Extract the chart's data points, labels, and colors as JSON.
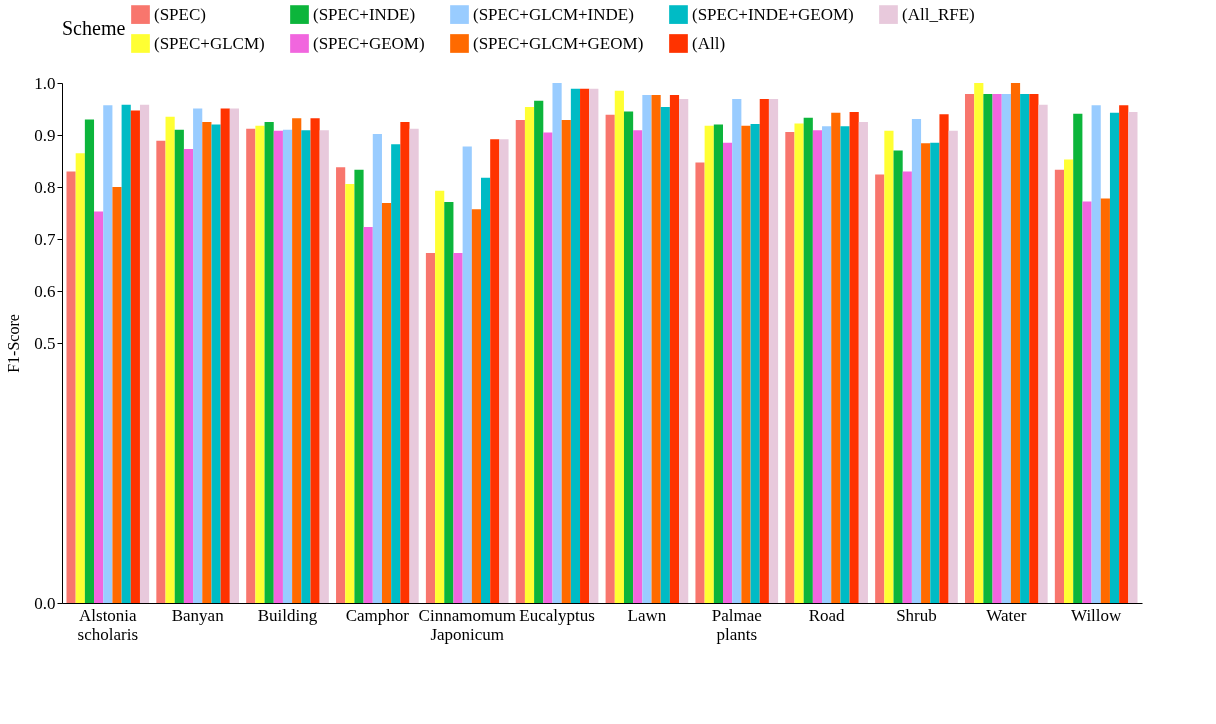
{
  "chart_data": {
    "type": "bar",
    "ylabel": "F1-Score",
    "legend_title": "Scheme",
    "legend": "top",
    "grid": false,
    "categories": [
      "Alstonia scholaris",
      "Banyan",
      "Building",
      "Camphor",
      "Cinnamomum Japonicum",
      "Eucalyptus",
      "Lawn",
      "Palmae plants",
      "Road",
      "Shrub",
      "Water",
      "Willow"
    ],
    "ylim": [
      0,
      1.0
    ],
    "yticks": [
      {
        "value": 0,
        "label": "0.0"
      },
      0.5,
      0.6,
      0.7,
      0.8,
      0.9,
      {
        "value": 1.0,
        "label": "1.0"
      }
    ],
    "series": [
      {
        "name": "(SPEC)",
        "color": "#f8766d",
        "values": [
          0.83,
          0.889,
          0.912,
          0.838,
          0.673,
          0.929,
          0.939,
          0.847,
          0.906,
          0.824,
          0.979,
          0.833
        ]
      },
      {
        "name": "(SPEC+GLCM)",
        "color": "#ffff33",
        "values": [
          0.865,
          0.935,
          0.918,
          0.806,
          0.793,
          0.954,
          0.985,
          0.918,
          0.922,
          0.908,
          1.0,
          0.853
        ]
      },
      {
        "name": "(SPEC+INDE)",
        "color": "#0cb53b",
        "values": [
          0.93,
          0.91,
          0.925,
          0.833,
          0.771,
          0.966,
          0.945,
          0.92,
          0.933,
          0.87,
          0.979,
          0.941
        ]
      },
      {
        "name": "(SPEC+GEOM)",
        "color": "#f166de",
        "values": [
          0.753,
          0.873,
          0.908,
          0.723,
          0.673,
          0.905,
          0.909,
          0.885,
          0.909,
          0.83,
          0.979,
          0.772
        ]
      },
      {
        "name": "(SPEC+GLCM+INDE)",
        "color": "#99ccff",
        "values": [
          0.957,
          0.951,
          0.91,
          0.902,
          0.878,
          1.0,
          0.977,
          0.969,
          0.917,
          0.931,
          0.979,
          0.957
        ]
      },
      {
        "name": "(SPEC+GLCM+GEOM)",
        "color": "#ff6a00",
        "values": [
          0.8,
          0.925,
          0.932,
          0.769,
          0.757,
          0.929,
          0.977,
          0.918,
          0.943,
          0.884,
          1.0,
          0.778
        ]
      },
      {
        "name": "(SPEC+INDE+GEOM)",
        "color": "#00bbc5",
        "values": [
          0.958,
          0.92,
          0.909,
          0.882,
          0.818,
          0.989,
          0.954,
          0.921,
          0.917,
          0.885,
          0.979,
          0.943
        ]
      },
      {
        "name": "(All)",
        "color": "#ff3300",
        "values": [
          0.947,
          0.951,
          0.932,
          0.925,
          0.892,
          0.989,
          0.977,
          0.969,
          0.944,
          0.94,
          0.979,
          0.957
        ]
      },
      {
        "name": "(All_RFE)",
        "color": "#e8c9dc",
        "values": [
          0.958,
          0.951,
          0.909,
          0.912,
          0.892,
          0.989,
          0.969,
          0.969,
          0.925,
          0.908,
          0.958,
          0.944
        ]
      }
    ]
  }
}
